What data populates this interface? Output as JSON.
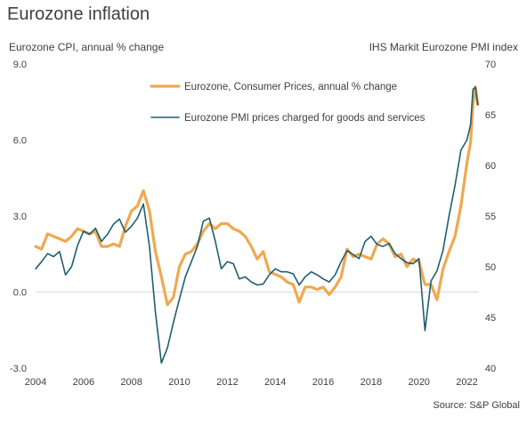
{
  "chart_data": {
    "type": "line",
    "title": "Eurozone inflation",
    "left_axis_label": "Eurozone CPI, annual % change",
    "right_axis_label": "IHS Markit Eurozone PMI index",
    "source": "Source: S&P Global",
    "xlim": [
      2004,
      2022.5
    ],
    "x_ticks": [
      2004,
      2006,
      2008,
      2010,
      2012,
      2014,
      2016,
      2018,
      2020,
      2022
    ],
    "x_tick_labels": [
      "2004",
      "2006",
      "2008",
      "2010",
      "2012",
      "2014",
      "2016",
      "2018",
      "2020",
      "2022"
    ],
    "left_ylim": [
      -3.0,
      9.0
    ],
    "left_ticks": [
      -3.0,
      0.0,
      3.0,
      6.0,
      9.0
    ],
    "left_tick_labels": [
      "-3.0",
      "0.0",
      "3.0",
      "6.0",
      "9.0"
    ],
    "right_ylim": [
      40,
      70
    ],
    "right_ticks": [
      40,
      45,
      50,
      55,
      60,
      65,
      70
    ],
    "right_tick_labels": [
      "40",
      "45",
      "50",
      "55",
      "60",
      "65",
      "70"
    ],
    "zero_line": 0.0,
    "grid": false,
    "legend_position": "top-right",
    "colors": {
      "cpi": "#f0a850",
      "pmi": "#1f5f70",
      "axis_text": "#404040",
      "zero_line": "#d9d9d9"
    },
    "series": [
      {
        "name": "Eurozone, Consumer Prices, annual % change",
        "axis": "left",
        "color": "#f0a850",
        "points": [
          [
            2004.0,
            1.8
          ],
          [
            2004.25,
            1.7
          ],
          [
            2004.5,
            2.3
          ],
          [
            2004.75,
            2.2
          ],
          [
            2005.0,
            2.1
          ],
          [
            2005.25,
            2.0
          ],
          [
            2005.5,
            2.2
          ],
          [
            2005.75,
            2.5
          ],
          [
            2006.0,
            2.4
          ],
          [
            2006.25,
            2.3
          ],
          [
            2006.5,
            2.4
          ],
          [
            2006.75,
            1.8
          ],
          [
            2007.0,
            1.8
          ],
          [
            2007.25,
            1.9
          ],
          [
            2007.5,
            1.8
          ],
          [
            2007.75,
            2.6
          ],
          [
            2008.0,
            3.2
          ],
          [
            2008.25,
            3.4
          ],
          [
            2008.5,
            4.0
          ],
          [
            2008.75,
            3.2
          ],
          [
            2009.0,
            1.6
          ],
          [
            2009.25,
            0.6
          ],
          [
            2009.5,
            -0.5
          ],
          [
            2009.75,
            -0.2
          ],
          [
            2010.0,
            1.0
          ],
          [
            2010.25,
            1.5
          ],
          [
            2010.5,
            1.6
          ],
          [
            2010.75,
            1.9
          ],
          [
            2011.0,
            2.4
          ],
          [
            2011.25,
            2.7
          ],
          [
            2011.5,
            2.5
          ],
          [
            2011.75,
            2.7
          ],
          [
            2012.0,
            2.7
          ],
          [
            2012.25,
            2.5
          ],
          [
            2012.5,
            2.4
          ],
          [
            2012.75,
            2.2
          ],
          [
            2013.0,
            1.8
          ],
          [
            2013.25,
            1.3
          ],
          [
            2013.5,
            1.6
          ],
          [
            2013.75,
            0.8
          ],
          [
            2014.0,
            0.7
          ],
          [
            2014.25,
            0.6
          ],
          [
            2014.5,
            0.4
          ],
          [
            2014.75,
            0.3
          ],
          [
            2015.0,
            -0.4
          ],
          [
            2015.25,
            0.2
          ],
          [
            2015.5,
            0.2
          ],
          [
            2015.75,
            0.1
          ],
          [
            2016.0,
            0.2
          ],
          [
            2016.25,
            -0.1
          ],
          [
            2016.5,
            0.2
          ],
          [
            2016.75,
            0.6
          ],
          [
            2017.0,
            1.7
          ],
          [
            2017.25,
            1.4
          ],
          [
            2017.5,
            1.5
          ],
          [
            2017.75,
            1.4
          ],
          [
            2018.0,
            1.3
          ],
          [
            2018.25,
            1.9
          ],
          [
            2018.5,
            2.1
          ],
          [
            2018.75,
            1.9
          ],
          [
            2019.0,
            1.4
          ],
          [
            2019.25,
            1.5
          ],
          [
            2019.5,
            1.0
          ],
          [
            2019.75,
            1.3
          ],
          [
            2020.0,
            1.2
          ],
          [
            2020.25,
            0.3
          ],
          [
            2020.5,
            0.3
          ],
          [
            2020.75,
            -0.3
          ],
          [
            2021.0,
            0.9
          ],
          [
            2021.25,
            1.6
          ],
          [
            2021.5,
            2.2
          ],
          [
            2021.75,
            3.4
          ],
          [
            2022.0,
            5.1
          ],
          [
            2022.15,
            5.9
          ],
          [
            2022.25,
            7.4
          ],
          [
            2022.35,
            8.1
          ],
          [
            2022.45,
            7.4
          ]
        ]
      },
      {
        "name": "Eurozone PMI prices charged for goods and services",
        "axis": "right",
        "color": "#1f5f70",
        "points": [
          [
            2004.0,
            49.8
          ],
          [
            2004.25,
            50.5
          ],
          [
            2004.5,
            51.3
          ],
          [
            2004.75,
            51.0
          ],
          [
            2005.0,
            51.5
          ],
          [
            2005.25,
            49.2
          ],
          [
            2005.5,
            50.0
          ],
          [
            2005.75,
            52.1
          ],
          [
            2006.0,
            53.5
          ],
          [
            2006.25,
            53.2
          ],
          [
            2006.5,
            53.8
          ],
          [
            2006.75,
            52.5
          ],
          [
            2007.0,
            53.2
          ],
          [
            2007.25,
            54.2
          ],
          [
            2007.5,
            54.7
          ],
          [
            2007.75,
            53.4
          ],
          [
            2008.0,
            54.0
          ],
          [
            2008.25,
            54.8
          ],
          [
            2008.5,
            56.2
          ],
          [
            2008.75,
            52.0
          ],
          [
            2009.0,
            45.5
          ],
          [
            2009.25,
            40.5
          ],
          [
            2009.5,
            42.0
          ],
          [
            2009.75,
            44.5
          ],
          [
            2010.0,
            46.8
          ],
          [
            2010.25,
            49.0
          ],
          [
            2010.5,
            50.5
          ],
          [
            2010.75,
            52.0
          ],
          [
            2011.0,
            54.5
          ],
          [
            2011.25,
            54.8
          ],
          [
            2011.5,
            52.5
          ],
          [
            2011.75,
            49.8
          ],
          [
            2012.0,
            50.5
          ],
          [
            2012.25,
            50.3
          ],
          [
            2012.5,
            48.8
          ],
          [
            2012.75,
            49.0
          ],
          [
            2013.0,
            48.5
          ],
          [
            2013.25,
            48.2
          ],
          [
            2013.5,
            48.3
          ],
          [
            2013.75,
            49.2
          ],
          [
            2014.0,
            49.8
          ],
          [
            2014.25,
            49.5
          ],
          [
            2014.5,
            49.5
          ],
          [
            2014.75,
            49.3
          ],
          [
            2015.0,
            48.2
          ],
          [
            2015.25,
            49.0
          ],
          [
            2015.5,
            49.5
          ],
          [
            2015.75,
            49.2
          ],
          [
            2016.0,
            48.8
          ],
          [
            2016.25,
            48.5
          ],
          [
            2016.5,
            49.2
          ],
          [
            2016.75,
            50.5
          ],
          [
            2017.0,
            51.6
          ],
          [
            2017.25,
            51.2
          ],
          [
            2017.5,
            50.8
          ],
          [
            2017.75,
            52.5
          ],
          [
            2018.0,
            53.0
          ],
          [
            2018.25,
            52.2
          ],
          [
            2018.5,
            52.0
          ],
          [
            2018.75,
            52.3
          ],
          [
            2019.0,
            51.3
          ],
          [
            2019.25,
            50.8
          ],
          [
            2019.5,
            50.4
          ],
          [
            2019.75,
            50.3
          ],
          [
            2020.0,
            50.8
          ],
          [
            2020.25,
            43.7
          ],
          [
            2020.5,
            48.6
          ],
          [
            2020.75,
            49.6
          ],
          [
            2021.0,
            51.6
          ],
          [
            2021.25,
            55.0
          ],
          [
            2021.5,
            58.0
          ],
          [
            2021.75,
            61.5
          ],
          [
            2022.0,
            62.5
          ],
          [
            2022.15,
            64.0
          ],
          [
            2022.25,
            67.5
          ],
          [
            2022.35,
            67.7
          ],
          [
            2022.45,
            66.0
          ]
        ]
      }
    ]
  }
}
